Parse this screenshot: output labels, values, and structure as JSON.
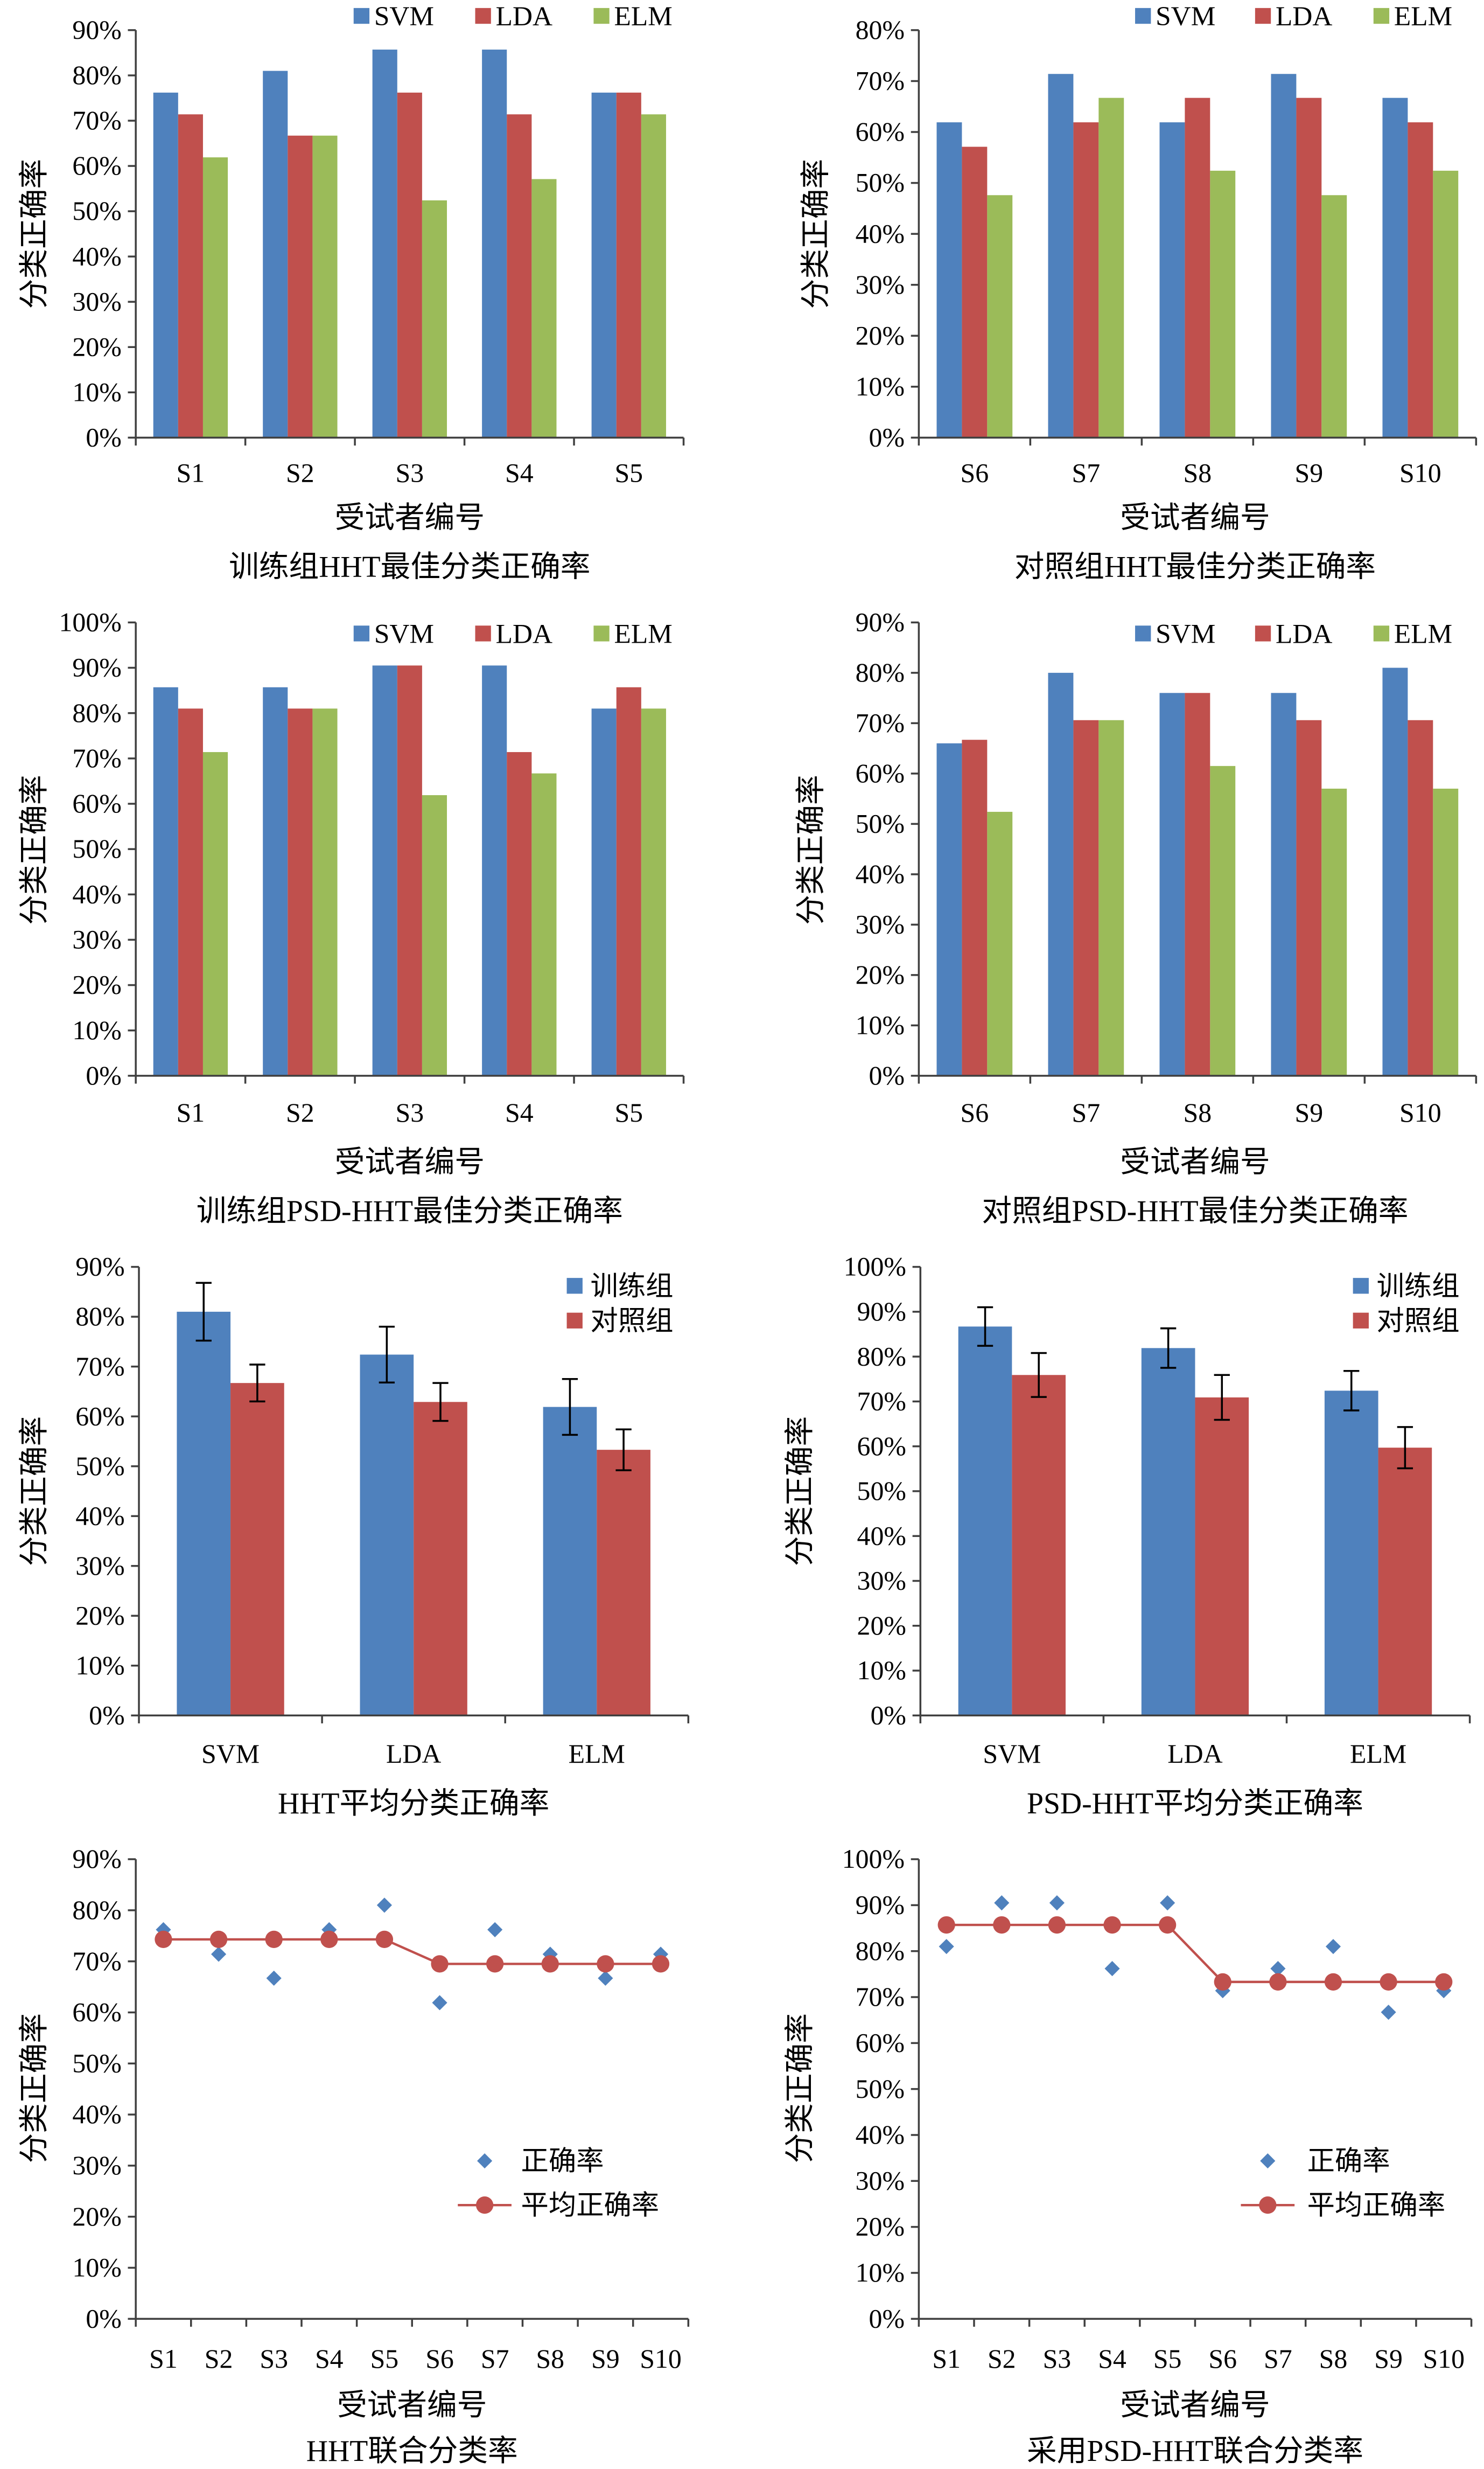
{
  "chart_data": [
    {
      "type": "bar",
      "title": "训练组HHT最佳分类正确率",
      "xlabel": "受试者编号",
      "ylabel": "分类正确率",
      "categories": [
        "S1",
        "S2",
        "S3",
        "S4",
        "S5"
      ],
      "series": [
        {
          "name": "SVM",
          "color": "#4F81BD",
          "values": [
            76.2,
            81.0,
            85.7,
            85.7,
            76.2
          ]
        },
        {
          "name": "LDA",
          "color": "#C0504D",
          "values": [
            71.4,
            66.7,
            76.2,
            71.4,
            76.2
          ]
        },
        {
          "name": "ELM",
          "color": "#9BBB59",
          "values": [
            61.9,
            66.7,
            52.4,
            57.1,
            71.4
          ]
        }
      ],
      "ylim": [
        0,
        90
      ],
      "yticks": [
        0,
        10,
        20,
        30,
        40,
        50,
        60,
        70,
        80,
        90
      ],
      "ytick_labels": [
        "0%",
        "10%",
        "20%",
        "30%",
        "40%",
        "50%",
        "60%",
        "70%",
        "80%",
        "90%"
      ]
    },
    {
      "type": "bar",
      "title": "对照组HHT最佳分类正确率",
      "xlabel": "受试者编号",
      "ylabel": "分类正确率",
      "categories": [
        "S6",
        "S7",
        "S8",
        "S9",
        "S10"
      ],
      "series": [
        {
          "name": "SVM",
          "color": "#4F81BD",
          "values": [
            61.9,
            71.4,
            61.9,
            71.4,
            66.7
          ]
        },
        {
          "name": "LDA",
          "color": "#C0504D",
          "values": [
            57.1,
            61.9,
            66.7,
            66.7,
            61.9
          ]
        },
        {
          "name": "ELM",
          "color": "#9BBB59",
          "values": [
            47.6,
            66.7,
            52.4,
            47.6,
            52.4
          ]
        }
      ],
      "ylim": [
        0,
        80
      ],
      "yticks": [
        0,
        10,
        20,
        30,
        40,
        50,
        60,
        70,
        80
      ],
      "ytick_labels": [
        "0%",
        "10%",
        "20%",
        "30%",
        "40%",
        "50%",
        "60%",
        "70%",
        "80%"
      ]
    },
    {
      "type": "bar",
      "title": "训练组PSD-HHT最佳分类正确率",
      "xlabel": "受试者编号",
      "ylabel": "分类正确率",
      "categories": [
        "S1",
        "S2",
        "S3",
        "S4",
        "S5"
      ],
      "series": [
        {
          "name": "SVM",
          "color": "#4F81BD",
          "values": [
            85.7,
            85.7,
            90.5,
            90.5,
            81.0
          ]
        },
        {
          "name": "LDA",
          "color": "#C0504D",
          "values": [
            81.0,
            81.0,
            90.5,
            71.4,
            85.7
          ]
        },
        {
          "name": "ELM",
          "color": "#9BBB59",
          "values": [
            71.4,
            81.0,
            61.9,
            66.7,
            81.0
          ]
        }
      ],
      "ylim": [
        0,
        100
      ],
      "yticks": [
        0,
        10,
        20,
        30,
        40,
        50,
        60,
        70,
        80,
        90,
        100
      ],
      "ytick_labels": [
        "0%",
        "10%",
        "20%",
        "30%",
        "40%",
        "50%",
        "60%",
        "70%",
        "80%",
        "90%",
        "100%"
      ]
    },
    {
      "type": "bar",
      "title": "对照组PSD-HHT最佳分类正确率",
      "xlabel": "受试者编号",
      "ylabel": "分类正确率",
      "categories": [
        "S6",
        "S7",
        "S8",
        "S9",
        "S10"
      ],
      "series": [
        {
          "name": "SVM",
          "color": "#4F81BD",
          "values": [
            66.0,
            80.0,
            76.0,
            76.0,
            81.0
          ]
        },
        {
          "name": "LDA",
          "color": "#C0504D",
          "values": [
            66.7,
            70.6,
            76.0,
            70.6,
            70.6
          ]
        },
        {
          "name": "ELM",
          "color": "#9BBB59",
          "values": [
            52.4,
            70.6,
            61.5,
            57.0,
            57.0
          ]
        }
      ],
      "ylim": [
        0,
        90
      ],
      "yticks": [
        0,
        10,
        20,
        30,
        40,
        50,
        60,
        70,
        80,
        90
      ],
      "ytick_labels": [
        "0%",
        "10%",
        "20%",
        "30%",
        "40%",
        "50%",
        "60%",
        "70%",
        "80%",
        "90%"
      ]
    },
    {
      "type": "bar",
      "title": "HHT平均分类正确率",
      "xlabel": "",
      "ylabel": "分类正确率",
      "categories": [
        "SVM",
        "LDA",
        "ELM"
      ],
      "series": [
        {
          "name": "训练组",
          "color": "#4F81BD",
          "values": [
            81.0,
            72.4,
            61.9
          ],
          "errors": [
            5.8,
            5.6,
            5.6
          ]
        },
        {
          "name": "对照组",
          "color": "#C0504D",
          "values": [
            66.7,
            62.9,
            53.3
          ],
          "errors": [
            3.7,
            3.8,
            4.1
          ]
        }
      ],
      "ylim": [
        0,
        90
      ],
      "yticks": [
        0,
        10,
        20,
        30,
        40,
        50,
        60,
        70,
        80,
        90
      ],
      "ytick_labels": [
        "0%",
        "10%",
        "20%",
        "30%",
        "40%",
        "50%",
        "60%",
        "70%",
        "80%",
        "90%"
      ]
    },
    {
      "type": "bar",
      "title": "PSD-HHT平均分类正确率",
      "xlabel": "",
      "ylabel": "分类正确率",
      "categories": [
        "SVM",
        "LDA",
        "ELM"
      ],
      "series": [
        {
          "name": "训练组",
          "color": "#4F81BD",
          "values": [
            86.7,
            81.9,
            72.4
          ],
          "errors": [
            4.3,
            4.4,
            4.4
          ]
        },
        {
          "name": "对照组",
          "color": "#C0504D",
          "values": [
            75.9,
            70.9,
            59.7
          ],
          "errors": [
            4.9,
            5.0,
            4.6
          ]
        }
      ],
      "ylim": [
        0,
        100
      ],
      "yticks": [
        0,
        10,
        20,
        30,
        40,
        50,
        60,
        70,
        80,
        90,
        100
      ],
      "ytick_labels": [
        "0%",
        "10%",
        "20%",
        "30%",
        "40%",
        "50%",
        "60%",
        "70%",
        "80%",
        "90%",
        "100%"
      ]
    },
    {
      "type": "scatter",
      "title": "HHT联合分类率",
      "xlabel": "受试者编号",
      "ylabel": "分类正确率",
      "categories": [
        "S1",
        "S2",
        "S3",
        "S4",
        "S5",
        "S6",
        "S7",
        "S8",
        "S9",
        "S10"
      ],
      "series": [
        {
          "name": "正确率",
          "color": "#4F81BD",
          "values": [
            76.2,
            71.4,
            66.7,
            76.2,
            81.0,
            61.9,
            76.2,
            71.4,
            66.7,
            71.4
          ]
        },
        {
          "name": "平均正确率",
          "color": "#C0504D",
          "values": [
            74.3,
            74.3,
            74.3,
            74.3,
            74.3,
            69.5,
            69.5,
            69.5,
            69.5,
            69.5
          ]
        }
      ],
      "ylim": [
        0,
        90
      ],
      "yticks": [
        0,
        10,
        20,
        30,
        40,
        50,
        60,
        70,
        80,
        90
      ],
      "ytick_labels": [
        "0%",
        "10%",
        "20%",
        "30%",
        "40%",
        "50%",
        "60%",
        "70%",
        "80%",
        "90%"
      ]
    },
    {
      "type": "scatter",
      "title": "采用PSD-HHT联合分类率",
      "xlabel": "受试者编号",
      "ylabel": "分类正确率",
      "categories": [
        "S1",
        "S2",
        "S3",
        "S4",
        "S5",
        "S6",
        "S7",
        "S8",
        "S9",
        "S10"
      ],
      "series": [
        {
          "name": "正确率",
          "color": "#4F81BD",
          "values": [
            81.0,
            90.5,
            90.5,
            76.2,
            90.5,
            71.4,
            76.2,
            81.0,
            66.7,
            71.4
          ]
        },
        {
          "name": "平均正确率",
          "color": "#C0504D",
          "values": [
            85.7,
            85.7,
            85.7,
            85.7,
            85.7,
            73.3,
            73.3,
            73.3,
            73.3,
            73.3
          ]
        }
      ],
      "ylim": [
        0,
        100
      ],
      "yticks": [
        0,
        10,
        20,
        30,
        40,
        50,
        60,
        70,
        80,
        90,
        100
      ],
      "ytick_labels": [
        "0%",
        "10%",
        "20%",
        "30%",
        "40%",
        "50%",
        "60%",
        "70%",
        "80%",
        "90%",
        "100%"
      ]
    }
  ]
}
